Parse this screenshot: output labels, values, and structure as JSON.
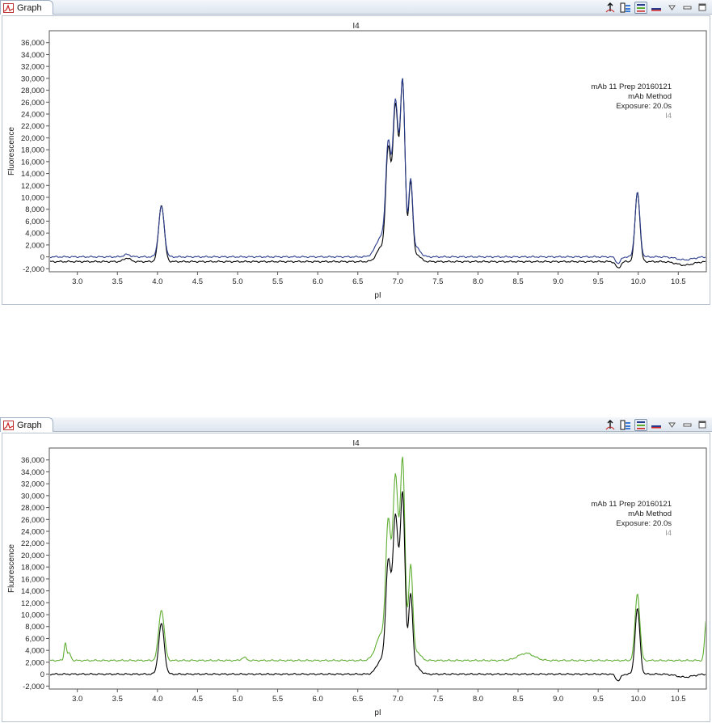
{
  "tab_label": "Graph",
  "toolbar_icons": [
    "peak-marker-icon",
    "report-icon",
    "legend-icon",
    "minimize-view-icon",
    "view-menu-icon",
    "minimize-icon",
    "maximize-icon"
  ],
  "colors": {
    "black_trace": "#000000",
    "blue_trace": "#2a3c8c",
    "green_trace": "#5fae32",
    "frame": "#b7c3d1"
  },
  "top": {
    "plot_title": "I4",
    "annotation": [
      "mAb 11 Prep 20160121",
      "mAb Method",
      "Exposure: 20.0s"
    ],
    "annotation_series": "I4"
  },
  "bottom": {
    "plot_title": "I4",
    "annotation": [
      "mAb 11 Prep 20160121",
      "mAb Method",
      "Exposure: 20.0s"
    ],
    "annotation_series": "I4"
  },
  "chart_data": [
    {
      "type": "line",
      "title": "I4",
      "xlabel": "pI",
      "ylabel": "Fluorescence",
      "xlim": [
        2.65,
        10.85
      ],
      "ylim": [
        -2500,
        38000
      ],
      "x_ticks": [
        "3.0",
        "3.5",
        "4.0",
        "4.5",
        "5.0",
        "5.5",
        "6.0",
        "6.5",
        "7.0",
        "7.5",
        "8.0",
        "8.5",
        "9.0",
        "9.5",
        "10.0",
        "10.5"
      ],
      "y_ticks": [
        "-2,000",
        "0",
        "2,000",
        "4,000",
        "6,000",
        "8,000",
        "10,000",
        "12,000",
        "14,000",
        "16,000",
        "18,000",
        "20,000",
        "22,000",
        "24,000",
        "26,000",
        "28,000",
        "30,000",
        "32,000",
        "34,000",
        "36,000"
      ],
      "legend": "top-right",
      "series": [
        {
          "color": "black",
          "baseline": -800,
          "peaks": [
            [
              3.62,
              600,
              0.04
            ],
            [
              4.05,
              9500,
              0.035
            ],
            [
              6.8,
              2500,
              0.06
            ],
            [
              6.88,
              17500,
              0.03
            ],
            [
              6.97,
              26000,
              0.035
            ],
            [
              7.06,
              29700,
              0.03
            ],
            [
              7.16,
              13000,
              0.025
            ],
            [
              7.23,
              1200,
              0.05
            ],
            [
              9.99,
              11700,
              0.03
            ]
          ],
          "dips": [
            [
              9.75,
              -1100,
              0.03
            ],
            [
              10.58,
              -600,
              0.1
            ]
          ]
        },
        {
          "color": "blue",
          "baseline": 0,
          "peaks": [
            [
              3.62,
              400,
              0.04
            ],
            [
              4.05,
              8500,
              0.035
            ],
            [
              6.8,
              3500,
              0.07
            ],
            [
              6.88,
              17000,
              0.03
            ],
            [
              6.97,
              26000,
              0.035
            ],
            [
              7.06,
              29000,
              0.03
            ],
            [
              7.16,
              12500,
              0.025
            ],
            [
              7.23,
              1500,
              0.05
            ],
            [
              9.99,
              10800,
              0.03
            ]
          ],
          "dips": [
            [
              9.75,
              -1100,
              0.03
            ],
            [
              10.58,
              -500,
              0.1
            ]
          ]
        }
      ]
    },
    {
      "type": "line",
      "title": "I4",
      "xlabel": "pI",
      "ylabel": "Fluorescence",
      "xlim": [
        2.65,
        10.85
      ],
      "ylim": [
        -2500,
        38000
      ],
      "x_ticks": [
        "3.0",
        "3.5",
        "4.0",
        "4.5",
        "5.0",
        "5.5",
        "6.0",
        "6.5",
        "7.0",
        "7.5",
        "8.0",
        "8.5",
        "9.0",
        "9.5",
        "10.0",
        "10.5"
      ],
      "y_ticks": [
        "-2,000",
        "0",
        "2,000",
        "4,000",
        "6,000",
        "8,000",
        "10,000",
        "12,000",
        "14,000",
        "16,000",
        "18,000",
        "20,000",
        "22,000",
        "24,000",
        "26,000",
        "28,000",
        "30,000",
        "32,000",
        "34,000",
        "36,000"
      ],
      "legend": "top-right",
      "series": [
        {
          "color": "green",
          "baseline": 2300,
          "peaks": [
            [
              2.85,
              3000,
              0.015
            ],
            [
              2.9,
              1200,
              0.02
            ],
            [
              4.05,
              8500,
              0.035
            ],
            [
              5.08,
              500,
              0.03
            ],
            [
              6.8,
              4500,
              0.07
            ],
            [
              6.88,
              20500,
              0.03
            ],
            [
              6.97,
              30500,
              0.035
            ],
            [
              7.06,
              33000,
              0.03
            ],
            [
              7.16,
              15500,
              0.025
            ],
            [
              7.23,
              1500,
              0.05
            ],
            [
              8.6,
              1200,
              0.1
            ],
            [
              9.99,
              11200,
              0.03
            ],
            [
              10.85,
              7000,
              0.02
            ]
          ],
          "dips": []
        },
        {
          "color": "black",
          "baseline": 0,
          "peaks": [
            [
              4.05,
              8500,
              0.035
            ],
            [
              6.8,
              2500,
              0.06
            ],
            [
              6.88,
              17500,
              0.03
            ],
            [
              6.97,
              26500,
              0.035
            ],
            [
              7.06,
              29700,
              0.03
            ],
            [
              7.16,
              13000,
              0.025
            ],
            [
              7.23,
              1200,
              0.05
            ],
            [
              9.99,
              11000,
              0.03
            ]
          ],
          "dips": [
            [
              9.75,
              -1100,
              0.03
            ],
            [
              10.58,
              -500,
              0.1
            ]
          ]
        }
      ]
    }
  ]
}
